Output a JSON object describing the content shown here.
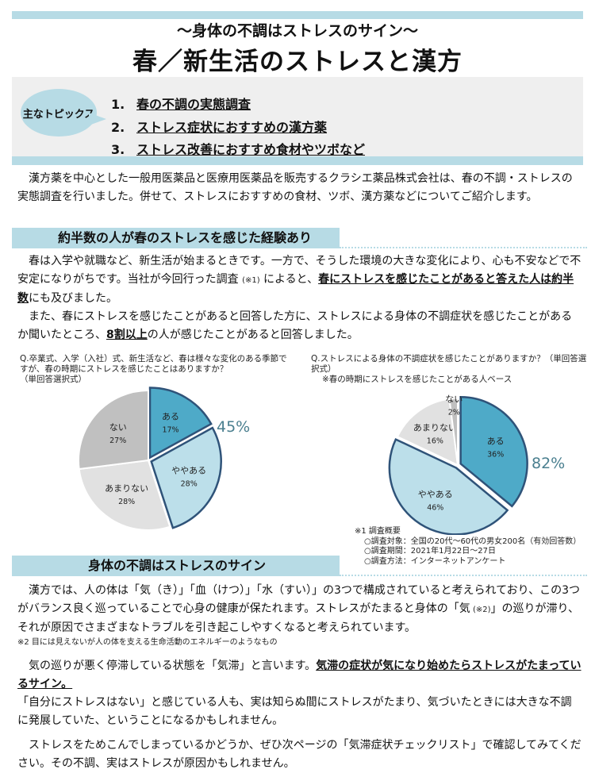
{
  "header": {
    "subtitle": "～身体の不調はストレスのサイン～",
    "title": "春／新生活のストレスと漢方"
  },
  "topics": {
    "label": "主なトピックス",
    "items": [
      {
        "num": "1.",
        "text": "春の不調の実態調査"
      },
      {
        "num": "2.",
        "text": "ストレス症状におすすめの漢方薬"
      },
      {
        "num": "3.",
        "text": "ストレス改善におすすめ食材やツボなど"
      }
    ]
  },
  "intro": "漢方薬を中心とした一般用医薬品と医療用医薬品を販売するクラシエ薬品株式会社は、春の不調・ストレスの実態調査を行いました。併せて、ストレスにおすすめの食材、ツボ、漢方薬などについてご紹介します。",
  "section1": {
    "heading": "約半数の人が春のストレスを感じた経験あり",
    "p1": [
      "春は入学や就職など、新生活が始まるときです。一方で、そうした環境の大きな変化により、心も不安などで不安定になりがちです。当社が今回行った調査 ",
      "(※1)",
      " によると、",
      "春にストレスを感じたことがあると答えた人は約半数",
      "にも及びました。"
    ],
    "p2": [
      "また、春にストレスを感じたことがあると回答した方に、ストレスによる身体の不調症状を感じたことがあるか聞いたところ、",
      "8割以上",
      "の人が感じたことがあると回答しました。"
    ]
  },
  "chart_data": [
    {
      "type": "pie",
      "title": "Q.卒業式、入学（入社）式、新生活など、春は様々な変化のある季節ですが、春の時期にストレスを感じたことはありますか？",
      "subtitle": "（単回答選択式）",
      "categories": [
        "ある",
        "ややある",
        "あまりない",
        "ない"
      ],
      "values": [
        17,
        28,
        28,
        27
      ],
      "value_labels": [
        "17%",
        "28%",
        "28%",
        "27%"
      ],
      "colors": [
        "#4eaac8",
        "#bcdfea",
        "#e1e1e1",
        "#c0c0c0"
      ],
      "highlight_total": "45%",
      "highlight_color": "#4a7f8f",
      "outline_color": "#2f5379"
    },
    {
      "type": "pie",
      "title": "Q.ストレスによる身体の不調症状を感じたことがありますか？（単回答選択式）",
      "subtitle": "※春の時期にストレスを感じたことがある人ベース",
      "categories": [
        "ある",
        "ややある",
        "あまりない",
        "ない"
      ],
      "values": [
        36,
        46,
        16,
        2
      ],
      "value_labels": [
        "36%",
        "46%",
        "16%",
        "2%"
      ],
      "colors": [
        "#4eaac8",
        "#bcdfea",
        "#e1e1e1",
        "#c0c0c0"
      ],
      "highlight_total": "82%",
      "highlight_color": "#4a7f8f",
      "outline_color": "#2f5379"
    }
  ],
  "survey_note": {
    "title": "※1 調査概要",
    "lines": [
      "○調査対象：全国の20代～60代の男女200名（有効回答数）",
      "○調査期間：2021年1月22日～27日",
      "○調査方法：インターネットアンケート"
    ]
  },
  "section2": {
    "heading": "身体の不調はストレスのサイン",
    "p1": [
      "漢方では、人の体は「気（き）」「血（けつ）」「水（すい）」の3つで構成されていると考えられており、この3つがバランス良く巡っていることで心身の健康が保たれます。ストレスがたまると身体の「気",
      " (※2)",
      "」の巡りが滞り、それが原因でさまざまなトラブルを引き起こしやすくなると考えられています。"
    ],
    "note": "※2 目には見えないが人の体を支える生命活動のエネルギーのようなもの",
    "p2": [
      "気の巡りが悪く停滞している状態を「気滞」と言います。",
      "気滞の症状が気になり始めたらストレスがたまっているサイン。",
      "「自分にストレスはない」と感じている人も、実は知らぬ間にストレスがたまり、気づいたときには大きな不調に発展していた、ということになるかもしれません。"
    ],
    "p3": "ストレスをためこんでしまっているかどうか、ぜひ次ページの「気滞症状チェックリスト」で確認してみてください。その不調、実はストレスが原因かもしれません。"
  }
}
